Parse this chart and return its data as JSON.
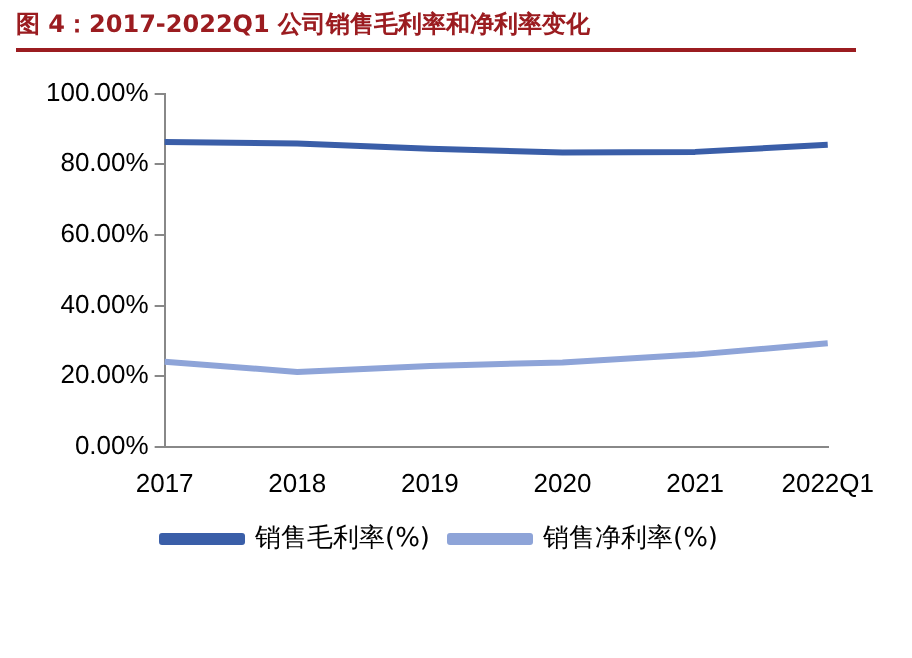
{
  "chart_data": {
    "type": "line",
    "title": "图 4：2017-2022Q1 公司销售毛利率和净利率变化",
    "categories": [
      "2017",
      "2018",
      "2019",
      "2020",
      "2021",
      "2022Q1"
    ],
    "series": [
      {
        "name": "销售毛利率(%)",
        "color": "#3a5ea8",
        "values": [
          86.3,
          85.9,
          84.4,
          83.3,
          83.5,
          85.5
        ]
      },
      {
        "name": "销售净利率(%)",
        "color": "#8ea4d8",
        "values": [
          24.1,
          21.2,
          22.9,
          23.9,
          26.1,
          29.3
        ]
      }
    ],
    "ylim": [
      0,
      100
    ],
    "yticks": [
      {
        "value": 0,
        "label": "0.00%"
      },
      {
        "value": 20,
        "label": "20.00%"
      },
      {
        "value": 40,
        "label": "40.00%"
      },
      {
        "value": 60,
        "label": "60.00%"
      },
      {
        "value": 80,
        "label": "80.00%"
      },
      {
        "value": 100,
        "label": "100.00%"
      }
    ],
    "grid": false,
    "legend": "bottom",
    "marker": "none",
    "line_style": "solid"
  }
}
